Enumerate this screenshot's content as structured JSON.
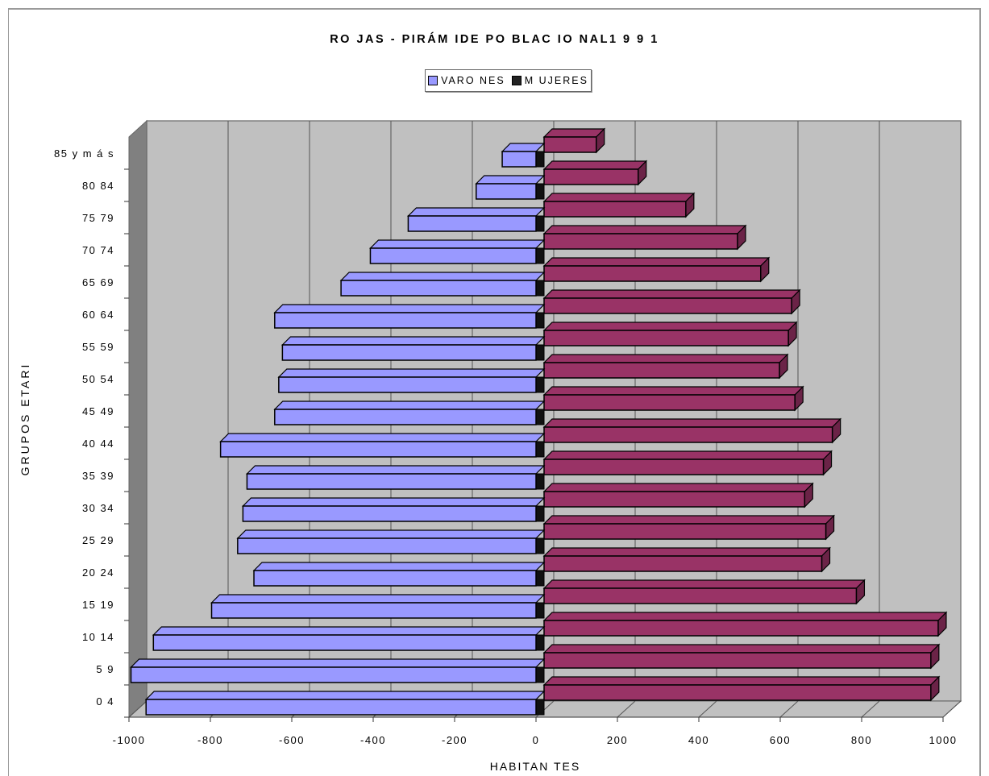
{
  "chart_data": {
    "type": "bar",
    "orientation": "horizontal",
    "title": "RO JAS - PIRÁM IDE PO BLAC IO NAL1 9 9 1",
    "xlabel": "HABITAN TES",
    "ylabel": "GRUPOS ETARI",
    "xlim": [
      -1000,
      1000
    ],
    "xticks": [
      "-1000",
      "-800",
      "-600",
      "-400",
      "-200",
      "0",
      "200",
      "400",
      "600",
      "800",
      "1000"
    ],
    "categories": [
      "0   4",
      "5   9",
      "10  14",
      "15  19",
      "20  24",
      "25  29",
      "30  34",
      "35  39",
      "40  44",
      "45  49",
      "50  54",
      "55  59",
      "60  64",
      "65  69",
      "70  74",
      "75  79",
      "80  84",
      "85 y m á s"
    ],
    "series": [
      {
        "name": "VARO NES",
        "color": "#9999ff",
        "values": [
          -958,
          -995,
          -940,
          -797,
          -693,
          -733,
          -720,
          -710,
          -775,
          -642,
          -632,
          -623,
          -642,
          -479,
          -407,
          -314,
          -147,
          -83
        ]
      },
      {
        "name": "M UJERES",
        "color": "#993366",
        "values": [
          970,
          970,
          988,
          787,
          702,
          712,
          660,
          706,
          728,
          636,
          598,
          620,
          628,
          552,
          495,
          368,
          251,
          148
        ]
      }
    ],
    "grid": true,
    "legend_position": "top",
    "style": "3d"
  }
}
